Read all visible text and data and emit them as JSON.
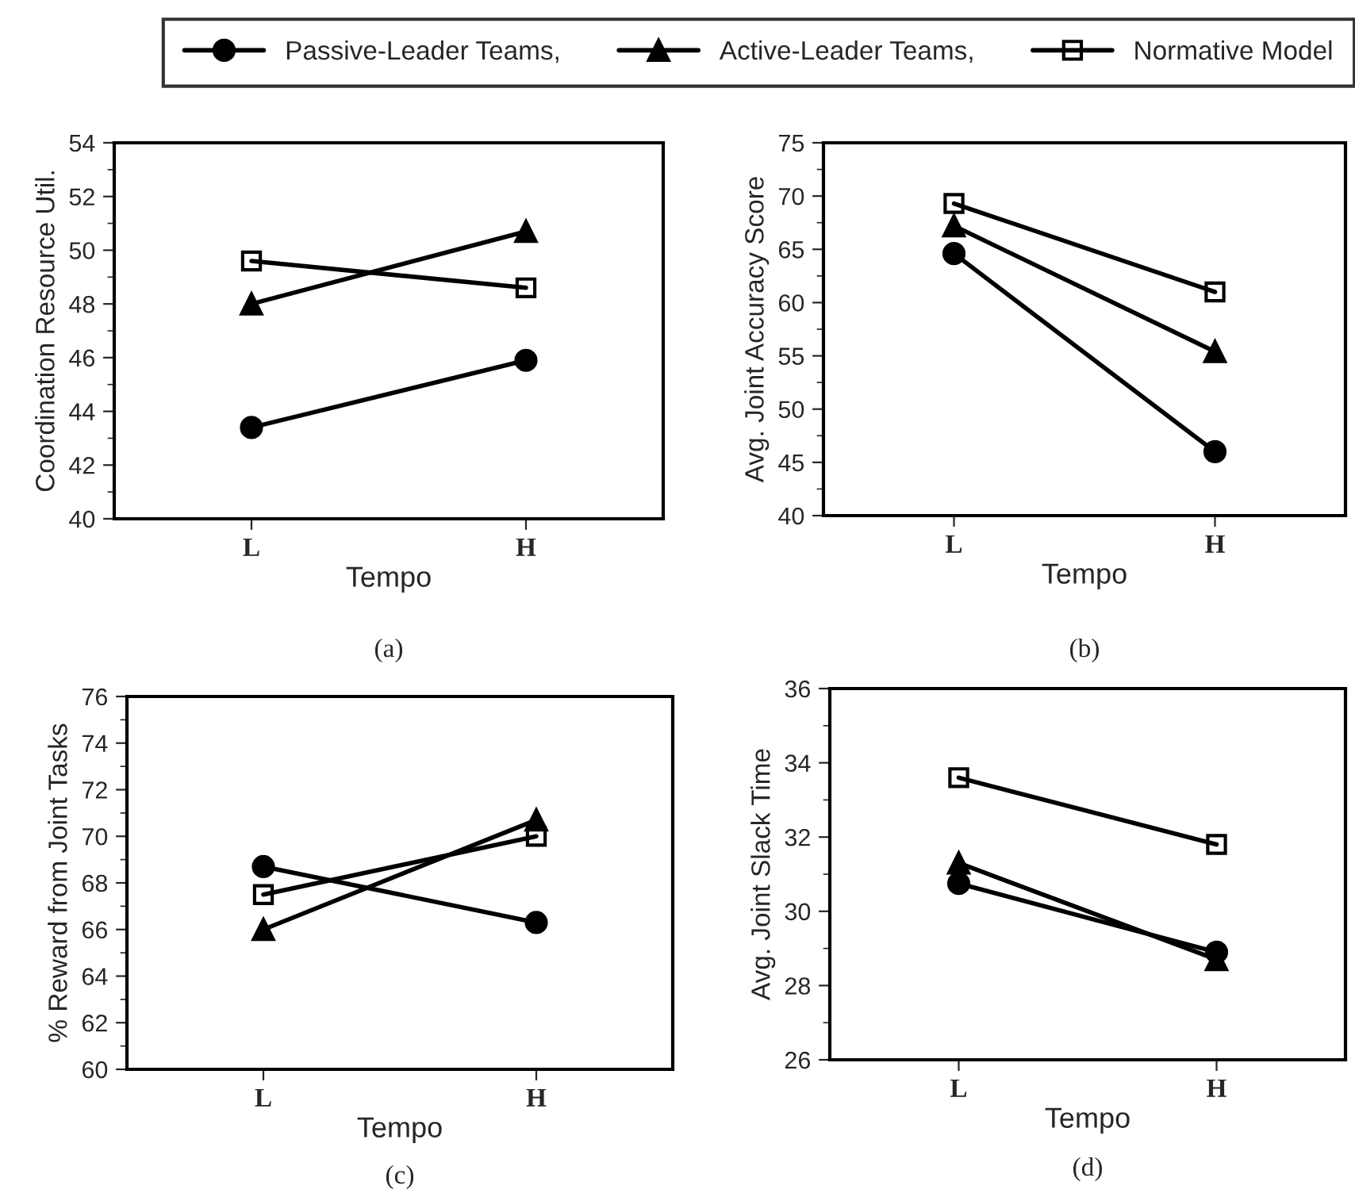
{
  "chart_data": [
    {
      "type": "line",
      "categories": [
        "L",
        "H"
      ],
      "xlabel": "Tempo",
      "ylabel": "Coordination Resource Util.",
      "ylim": [
        40,
        54
      ],
      "yticks": [
        40,
        42,
        44,
        46,
        48,
        50,
        52,
        54
      ],
      "legend": "top",
      "grid": false,
      "annotations": [
        "(a)"
      ],
      "series": [
        {
          "name": "Passive-Leader Teams,",
          "color": "#000000",
          "marker": "circle",
          "values": [
            43.4,
            45.9
          ]
        },
        {
          "name": "Active-Leader Teams,",
          "color": "#000000",
          "marker": "triangle",
          "values": [
            48.0,
            50.7
          ]
        },
        {
          "name": "Normative Model",
          "color": "#000000",
          "marker": "square",
          "values": [
            49.6,
            48.6
          ]
        }
      ]
    },
    {
      "type": "line",
      "categories": [
        "L",
        "H"
      ],
      "xlabel": "Tempo",
      "ylabel": "Avg. Joint Accuracy Score",
      "ylim": [
        40,
        75
      ],
      "yticks": [
        40,
        45,
        50,
        55,
        60,
        65,
        70,
        75
      ],
      "grid": false,
      "annotations": [
        "(b)"
      ],
      "series": [
        {
          "color": "#000000",
          "marker": "circle",
          "values": [
            64.6,
            46.0
          ]
        },
        {
          "color": "#000000",
          "marker": "triangle",
          "values": [
            67.2,
            55.4
          ]
        },
        {
          "color": "#000000",
          "marker": "square",
          "values": [
            69.3,
            61.0
          ]
        }
      ]
    },
    {
      "type": "line",
      "categories": [
        "L",
        "H"
      ],
      "xlabel": "Tempo",
      "ylabel": "% Reward from Joint Tasks",
      "ylim": [
        60,
        76
      ],
      "yticks": [
        60,
        62,
        64,
        66,
        68,
        70,
        72,
        74,
        76
      ],
      "grid": false,
      "annotations": [
        "(c)"
      ],
      "series": [
        {
          "color": "#000000",
          "marker": "circle",
          "values": [
            68.7,
            66.3
          ]
        },
        {
          "color": "#000000",
          "marker": "triangle",
          "values": [
            66.0,
            70.7
          ]
        },
        {
          "color": "#000000",
          "marker": "square",
          "values": [
            67.5,
            70.0
          ]
        }
      ]
    },
    {
      "type": "line",
      "categories": [
        "L",
        "H"
      ],
      "xlabel": "Tempo",
      "ylabel": "Avg. Joint Slack Time",
      "ylim": [
        26,
        36
      ],
      "yticks": [
        26,
        28,
        30,
        32,
        34,
        36
      ],
      "grid": false,
      "annotations": [
        "(d)"
      ],
      "series": [
        {
          "color": "#000000",
          "marker": "circle",
          "values": [
            30.75,
            28.9
          ]
        },
        {
          "color": "#000000",
          "marker": "triangle",
          "values": [
            31.3,
            28.7
          ]
        },
        {
          "color": "#000000",
          "marker": "square",
          "values": [
            33.6,
            31.8
          ]
        }
      ]
    }
  ]
}
